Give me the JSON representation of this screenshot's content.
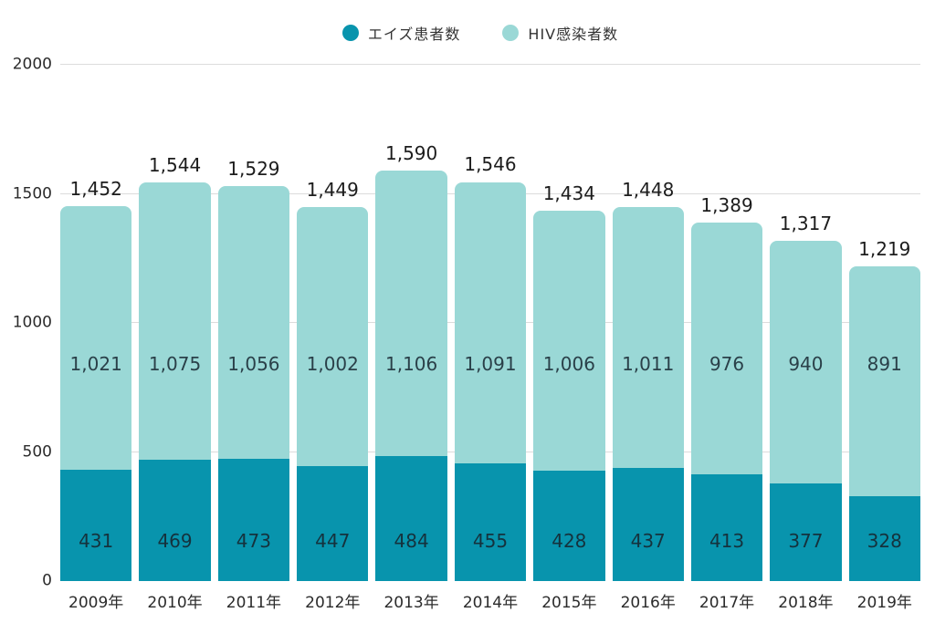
{
  "chart_data": {
    "type": "bar",
    "stacked": true,
    "title": "",
    "xlabel": "",
    "ylabel": "",
    "ylim": [
      0,
      2000
    ],
    "grid": true,
    "legend_position": "top",
    "categories": [
      "2009年",
      "2010年",
      "2011年",
      "2012年",
      "2013年",
      "2014年",
      "2015年",
      "2016年",
      "2017年",
      "2018年",
      "2019年"
    ],
    "series": [
      {
        "name": "エイズ患者数",
        "color": "#0894ad",
        "values": [
          431,
          469,
          473,
          447,
          484,
          455,
          428,
          437,
          413,
          377,
          328
        ],
        "labels": [
          "431",
          "469",
          "473",
          "447",
          "484",
          "455",
          "428",
          "437",
          "413",
          "377",
          "328"
        ]
      },
      {
        "name": "HIV感染者数",
        "color": "#9ad8d6",
        "values": [
          1021,
          1075,
          1056,
          1002,
          1106,
          1091,
          1006,
          1011,
          976,
          940,
          891
        ],
        "labels": [
          "1,021",
          "1,075",
          "1,056",
          "1,002",
          "1,106",
          "1,091",
          "1,006",
          "1,011",
          "976",
          "940",
          "891"
        ]
      }
    ],
    "totals": [
      1452,
      1544,
      1529,
      1449,
      1590,
      1546,
      1434,
      1448,
      1389,
      1317,
      1219
    ],
    "total_labels": [
      "1,452",
      "1,544",
      "1,529",
      "1,449",
      "1,590",
      "1,546",
      "1,434",
      "1,448",
      "1,389",
      "1,317",
      "1,219"
    ],
    "yticks": [
      0,
      500,
      1000,
      1500,
      2000
    ],
    "ytick_labels": [
      "0",
      "500",
      "1000",
      "1500",
      "2000"
    ]
  },
  "colors": {
    "background": "#ffffff",
    "gridline": "#dcdcdc",
    "total_label_text": "#1c1c1c",
    "axis_text": "#2b2b2b",
    "legend_text": "#333333"
  }
}
